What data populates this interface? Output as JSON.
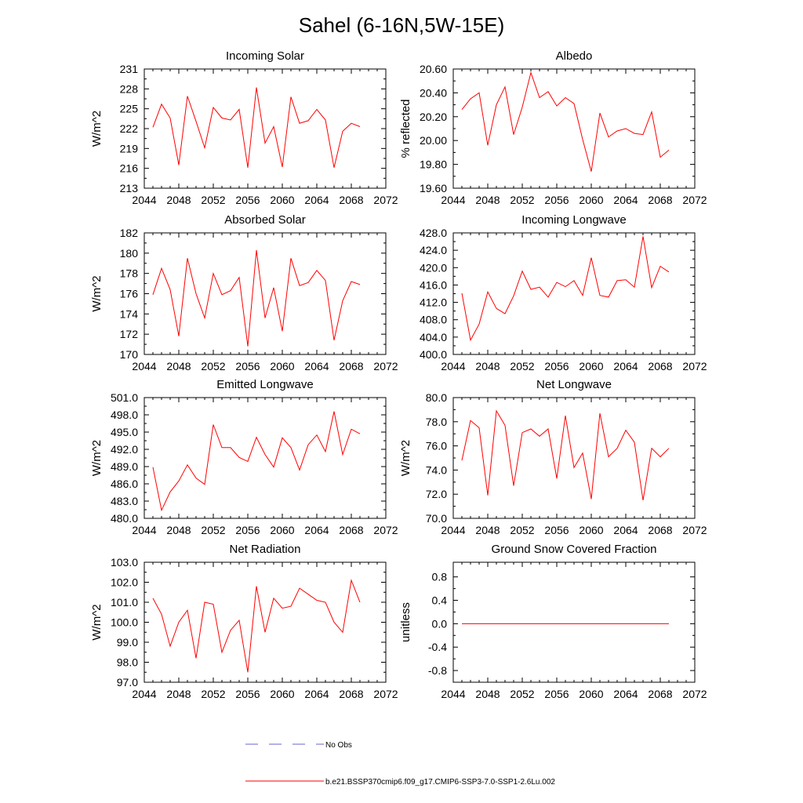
{
  "figure_title": "Sahel (6-16N,5W-15E)",
  "legend": {
    "obs_label": "No Obs",
    "obs_color": "#6666cc",
    "model_label": "b.e21.BSSP370cmip6.f09_g17.CMIP6-SSP3-7.0-SSP1-2.6Lu.002",
    "model_color": "#ff0000"
  },
  "chart_data": [
    {
      "type": "line",
      "title": "Incoming Solar",
      "ylabel": "W/m^2",
      "xlim": [
        2044,
        2072
      ],
      "xticks": [
        2044,
        2048,
        2052,
        2056,
        2060,
        2064,
        2068,
        2072
      ],
      "ylim": [
        213,
        231
      ],
      "yticks": [
        "213",
        "216",
        "219",
        "222",
        "225",
        "228",
        "231"
      ],
      "x": [
        2045,
        2046,
        2047,
        2048,
        2049,
        2050,
        2051,
        2052,
        2053,
        2054,
        2055,
        2056,
        2057,
        2058,
        2059,
        2060,
        2061,
        2062,
        2063,
        2064,
        2065,
        2066,
        2067,
        2068,
        2069
      ],
      "series": [
        {
          "values": [
            222.2,
            225.7,
            223.6,
            216.5,
            226.9,
            223.1,
            219.1,
            225.2,
            223.6,
            223.3,
            224.9,
            216.1,
            228.2,
            219.8,
            222.3,
            216.2,
            226.8,
            222.8,
            223.2,
            224.9,
            223.3,
            216.1,
            221.6,
            222.8,
            222.3
          ]
        }
      ]
    },
    {
      "type": "line",
      "title": "Albedo",
      "ylabel": "% reflected",
      "xlim": [
        2044,
        2072
      ],
      "xticks": [
        2044,
        2048,
        2052,
        2056,
        2060,
        2064,
        2068,
        2072
      ],
      "ylim": [
        19.6,
        20.6
      ],
      "yticks": [
        "19.60",
        "19.80",
        "20.00",
        "20.20",
        "20.40",
        "20.60"
      ],
      "x": [
        2045,
        2046,
        2047,
        2048,
        2049,
        2050,
        2051,
        2052,
        2053,
        2054,
        2055,
        2056,
        2057,
        2058,
        2059,
        2060,
        2061,
        2062,
        2063,
        2064,
        2065,
        2066,
        2067,
        2068,
        2069
      ],
      "series": [
        {
          "values": [
            20.26,
            20.35,
            20.4,
            19.96,
            20.3,
            20.45,
            20.05,
            20.28,
            20.57,
            20.36,
            20.41,
            20.29,
            20.36,
            20.31,
            20.01,
            19.74,
            20.23,
            20.03,
            20.08,
            20.1,
            20.06,
            20.05,
            20.24,
            19.86,
            19.92
          ]
        }
      ]
    },
    {
      "type": "line",
      "title": "Absorbed Solar",
      "ylabel": "W/m^2",
      "xlim": [
        2044,
        2072
      ],
      "xticks": [
        2044,
        2048,
        2052,
        2056,
        2060,
        2064,
        2068,
        2072
      ],
      "ylim": [
        170,
        182
      ],
      "yticks": [
        "170",
        "172",
        "174",
        "176",
        "178",
        "180",
        "182"
      ],
      "x": [
        2045,
        2046,
        2047,
        2048,
        2049,
        2050,
        2051,
        2052,
        2053,
        2054,
        2055,
        2056,
        2057,
        2058,
        2059,
        2060,
        2061,
        2062,
        2063,
        2064,
        2065,
        2066,
        2067,
        2068,
        2069
      ],
      "series": [
        {
          "values": [
            175.9,
            178.5,
            176.4,
            171.8,
            179.5,
            176.0,
            173.6,
            178.0,
            175.9,
            176.3,
            177.6,
            170.8,
            180.3,
            173.6,
            176.6,
            172.3,
            179.5,
            176.8,
            177.1,
            178.3,
            177.3,
            171.4,
            175.3,
            177.2,
            176.9
          ]
        }
      ]
    },
    {
      "type": "line",
      "title": "Incoming Longwave",
      "ylabel": "",
      "xlim": [
        2044,
        2072
      ],
      "xticks": [
        2044,
        2048,
        2052,
        2056,
        2060,
        2064,
        2068,
        2072
      ],
      "ylim": [
        400,
        428
      ],
      "yticks": [
        "400.0",
        "404.0",
        "408.0",
        "412.0",
        "416.0",
        "420.0",
        "424.0",
        "428.0"
      ],
      "x": [
        2045,
        2046,
        2047,
        2048,
        2049,
        2050,
        2051,
        2052,
        2053,
        2054,
        2055,
        2056,
        2057,
        2058,
        2059,
        2060,
        2061,
        2062,
        2063,
        2064,
        2065,
        2066,
        2067,
        2068,
        2069
      ],
      "series": [
        {
          "values": [
            414.1,
            403.3,
            407.0,
            414.4,
            410.6,
            409.4,
            413.5,
            419.2,
            415.0,
            415.5,
            413.2,
            416.6,
            415.6,
            417.0,
            413.6,
            422.3,
            413.6,
            413.2,
            417.0,
            417.2,
            415.5,
            427.2,
            415.4,
            420.3,
            419.0
          ]
        }
      ]
    },
    {
      "type": "line",
      "title": "Emitted Longwave",
      "ylabel": "W/m^2",
      "xlim": [
        2044,
        2072
      ],
      "xticks": [
        2044,
        2048,
        2052,
        2056,
        2060,
        2064,
        2068,
        2072
      ],
      "ylim": [
        480,
        501
      ],
      "yticks": [
        "480.0",
        "483.0",
        "486.0",
        "489.0",
        "492.0",
        "495.0",
        "498.0",
        "501.0"
      ],
      "x": [
        2045,
        2046,
        2047,
        2048,
        2049,
        2050,
        2051,
        2052,
        2053,
        2054,
        2055,
        2056,
        2057,
        2058,
        2059,
        2060,
        2061,
        2062,
        2063,
        2064,
        2065,
        2066,
        2067,
        2068,
        2069
      ],
      "series": [
        {
          "values": [
            488.9,
            481.4,
            484.6,
            486.5,
            489.3,
            487.0,
            485.9,
            496.3,
            492.3,
            492.3,
            490.6,
            489.9,
            494.1,
            491.1,
            488.9,
            494.0,
            492.3,
            488.4,
            492.8,
            494.5,
            491.6,
            498.6,
            491.1,
            495.5,
            494.7
          ]
        }
      ]
    },
    {
      "type": "line",
      "title": "Net Longwave",
      "ylabel": "W/m^2",
      "xlim": [
        2044,
        2072
      ],
      "xticks": [
        2044,
        2048,
        2052,
        2056,
        2060,
        2064,
        2068,
        2072
      ],
      "ylim": [
        70,
        80
      ],
      "yticks": [
        "70.0",
        "72.0",
        "74.0",
        "76.0",
        "78.0",
        "80.0"
      ],
      "x": [
        2045,
        2046,
        2047,
        2048,
        2049,
        2050,
        2051,
        2052,
        2053,
        2054,
        2055,
        2056,
        2057,
        2058,
        2059,
        2060,
        2061,
        2062,
        2063,
        2064,
        2065,
        2066,
        2067,
        2068,
        2069
      ],
      "series": [
        {
          "values": [
            74.8,
            78.1,
            77.5,
            71.9,
            78.9,
            77.7,
            72.7,
            77.1,
            77.4,
            76.8,
            77.4,
            73.3,
            78.5,
            74.2,
            75.4,
            71.6,
            78.7,
            75.1,
            75.8,
            77.3,
            76.3,
            71.5,
            75.8,
            75.1,
            75.8
          ]
        }
      ]
    },
    {
      "type": "line",
      "title": "Net Radiation",
      "ylabel": "W/m^2",
      "xlim": [
        2044,
        2072
      ],
      "xticks": [
        2044,
        2048,
        2052,
        2056,
        2060,
        2064,
        2068,
        2072
      ],
      "ylim": [
        97,
        103
      ],
      "yticks": [
        "97.0",
        "98.0",
        "99.0",
        "100.0",
        "101.0",
        "102.0",
        "103.0"
      ],
      "x": [
        2045,
        2046,
        2047,
        2048,
        2049,
        2050,
        2051,
        2052,
        2053,
        2054,
        2055,
        2056,
        2057,
        2058,
        2059,
        2060,
        2061,
        2062,
        2063,
        2064,
        2065,
        2066,
        2067,
        2068,
        2069
      ],
      "series": [
        {
          "values": [
            101.2,
            100.4,
            98.8,
            100.0,
            100.6,
            98.2,
            101.0,
            100.9,
            98.5,
            99.6,
            100.1,
            97.5,
            101.8,
            99.5,
            101.2,
            100.7,
            100.8,
            101.7,
            101.4,
            101.1,
            101.0,
            100.0,
            99.5,
            102.1,
            101.0
          ]
        }
      ]
    },
    {
      "type": "line",
      "title": "Ground Snow Covered Fraction",
      "ylabel": "unitless",
      "xlim": [
        2044,
        2072
      ],
      "xticks": [
        2044,
        2048,
        2052,
        2056,
        2060,
        2064,
        2068,
        2072
      ],
      "ylim": [
        -1.0,
        1.05
      ],
      "yticks": [
        "-0.8",
        "-0.4",
        "0.0",
        "0.4",
        "0.8"
      ],
      "ytick_values": [
        -0.8,
        -0.4,
        0.0,
        0.4,
        0.8
      ],
      "x": [
        2045,
        2046,
        2047,
        2048,
        2049,
        2050,
        2051,
        2052,
        2053,
        2054,
        2055,
        2056,
        2057,
        2058,
        2059,
        2060,
        2061,
        2062,
        2063,
        2064,
        2065,
        2066,
        2067,
        2068,
        2069
      ],
      "series": [
        {
          "values": [
            0,
            0,
            0,
            0,
            0,
            0,
            0,
            0,
            0,
            0,
            0,
            0,
            0,
            0,
            0,
            0,
            0,
            0,
            0,
            0,
            0,
            0,
            0,
            0,
            0
          ]
        }
      ]
    }
  ]
}
